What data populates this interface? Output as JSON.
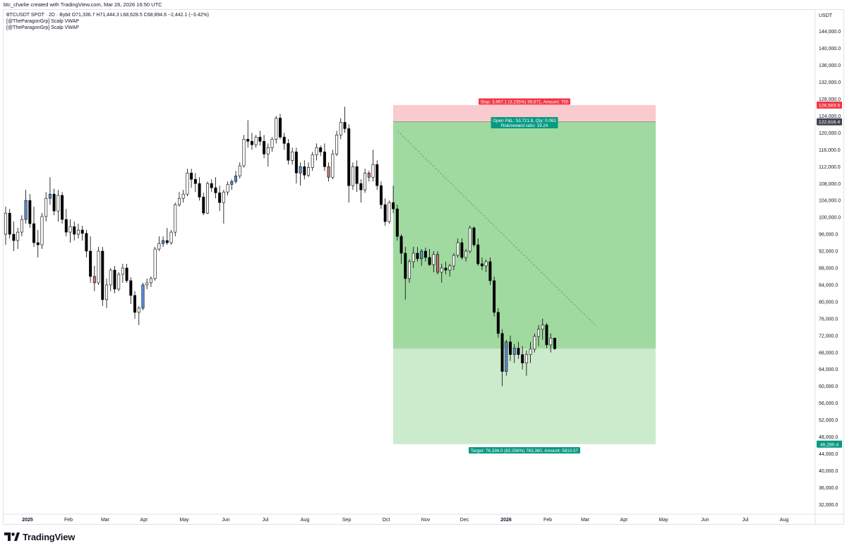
{
  "header": {
    "credit": "btc_charlie created with TradingView.com, Mar 26, 2026 16:50 UTC"
  },
  "legend": {
    "symbol_line": "BTCUSDT SPOT · 2D · Bybit  O71,336.7  H71,444.3  L68,628.5  C68,894.6  −2,442.1 (−3.42%)",
    "indicator_1": "[@TheParagonGrp] Scalp VWAP",
    "indicator_2": "[@TheParagonGrp] Scalp VWAP"
  },
  "footer": {
    "logo_text": "TradingView"
  },
  "chart_data": {
    "type": "candlestick",
    "unit": "USDT",
    "y_axis_labels": [
      "144,000.0",
      "140,000.0",
      "136,000.0",
      "132,000.0",
      "128,000.0",
      "124,000.0",
      "120,000.0",
      "116,000.0",
      "112,000.0",
      "108,000.0",
      "104,000.0",
      "100,000.0",
      "96,000.0",
      "92,000.0",
      "88,000.0",
      "84,000.0",
      "80,000.0",
      "76,000.0",
      "72,000.0",
      "68,000.0",
      "64,000.0",
      "60,000.0",
      "56,000.0",
      "52,000.0",
      "48,000.0",
      "44,000.0",
      "40,000.0",
      "36,000.0",
      "32,000.0"
    ],
    "y_axis_values": [
      144000,
      140000,
      136000,
      132000,
      128000,
      124000,
      120000,
      116000,
      112000,
      108000,
      104000,
      100000,
      96000,
      92000,
      88000,
      84000,
      80000,
      76000,
      72000,
      68000,
      64000,
      60000,
      56000,
      52000,
      48000,
      44000,
      40000,
      36000,
      32000
    ],
    "x_axis_labels": [
      "2025",
      "Feb",
      "Mar",
      "Apr",
      "May",
      "Jun",
      "Jul",
      "Aug",
      "Sep",
      "Oct",
      "Nov",
      "Dec",
      "2026",
      "Feb",
      "Mar",
      "Apr",
      "May",
      "Jun",
      "Jul",
      "Aug"
    ],
    "price_tags": [
      {
        "text": "126,583.5",
        "value": 126583.5,
        "color": "#f23645"
      },
      {
        "text": "122,616.4",
        "value": 122616.4,
        "color": "#434651"
      },
      {
        "text": "46,280.4",
        "value": 46280.4,
        "color": "#089981"
      }
    ],
    "position": {
      "side": "short",
      "entry": 122616.4,
      "stop": 126583.5,
      "target": 46280.4,
      "current_close": 68894.6,
      "stop_label": "Stop: 3,967.1 (3.235%) 39,671, Amount: 750",
      "open_pl_label": "Open P&L: 53,721.8, Qty: 0.063",
      "rr_label": "Risk/reward ratio: 19.24",
      "target_label": "Target: 76,336.0 (62.256%) 763,360, Amount: 5810.57"
    },
    "trendline": {
      "from_value": 120500,
      "to_value": 74200
    },
    "ohlc": [
      [
        96000,
        102500,
        93500,
        101000
      ],
      [
        101000,
        102000,
        95000,
        96000
      ],
      [
        96000,
        99000,
        92000,
        94500
      ],
      [
        94500,
        97500,
        92500,
        96500
      ],
      [
        96500,
        100500,
        95500,
        99500
      ],
      [
        99500,
        106500,
        98500,
        104000
      ],
      [
        104000,
        105500,
        97500,
        98500
      ],
      [
        98500,
        102500,
        93000,
        94000
      ],
      [
        94000,
        97000,
        90500,
        93500
      ],
      [
        93500,
        101000,
        92500,
        100200
      ],
      [
        100200,
        106000,
        99000,
        104500
      ],
      [
        104500,
        109500,
        103000,
        105500
      ],
      [
        105500,
        106800,
        100500,
        101500
      ],
      [
        101500,
        106500,
        99000,
        105200
      ],
      [
        105200,
        106000,
        98500,
        99500
      ],
      [
        99500,
        102000,
        95500,
        96500
      ],
      [
        96500,
        99500,
        94000,
        97800
      ],
      [
        97800,
        99000,
        94500,
        96000
      ],
      [
        96000,
        98500,
        95000,
        97000
      ],
      [
        97000,
        98000,
        94500,
        96200
      ],
      [
        96200,
        97000,
        90500,
        92000
      ],
      [
        92000,
        95500,
        84500,
        86000
      ],
      [
        86000,
        88500,
        82500,
        84500
      ],
      [
        84500,
        93000,
        84000,
        92000
      ],
      [
        92000,
        93000,
        79000,
        80500
      ],
      [
        80500,
        85500,
        78500,
        84000
      ],
      [
        84000,
        88000,
        82500,
        87500
      ],
      [
        87500,
        88500,
        82000,
        83000
      ],
      [
        83000,
        87000,
        82500,
        86500
      ],
      [
        86500,
        89000,
        84500,
        88000
      ],
      [
        88000,
        89000,
        84500,
        85000
      ],
      [
        85000,
        85800,
        79500,
        81500
      ],
      [
        81500,
        82500,
        76000,
        77500
      ],
      [
        77500,
        79000,
        74500,
        78500
      ],
      [
        78500,
        84500,
        78000,
        84000
      ],
      [
        84000,
        85500,
        83000,
        84500
      ],
      [
        84500,
        86000,
        83500,
        85500
      ],
      [
        85500,
        93000,
        85000,
        92500
      ],
      [
        92500,
        95500,
        92000,
        93800
      ],
      [
        93800,
        95500,
        93000,
        94500
      ],
      [
        94500,
        97500,
        93500,
        94000
      ],
      [
        94000,
        97000,
        93500,
        96500
      ],
      [
        96500,
        103500,
        95500,
        103000
      ],
      [
        103000,
        106000,
        102500,
        104500
      ],
      [
        104500,
        106500,
        103500,
        105500
      ],
      [
        105500,
        111500,
        105000,
        110500
      ],
      [
        110500,
        111500,
        107000,
        109000
      ],
      [
        109000,
        110500,
        106000,
        108000
      ],
      [
        108000,
        109500,
        104000,
        104800
      ],
      [
        104800,
        105800,
        100500,
        101000
      ],
      [
        101000,
        108500,
        100800,
        108000
      ],
      [
        108000,
        109000,
        106000,
        107000
      ],
      [
        107000,
        109500,
        104500,
        105800
      ],
      [
        105800,
        107500,
        101500,
        103500
      ],
      [
        103500,
        106500,
        98500,
        106000
      ],
      [
        106000,
        108500,
        105200,
        107800
      ],
      [
        107800,
        109000,
        106500,
        108500
      ],
      [
        108500,
        111000,
        108000,
        109800
      ],
      [
        109800,
        113000,
        109200,
        112200
      ],
      [
        112200,
        119500,
        111800,
        118500
      ],
      [
        118500,
        123000,
        116500,
        118000
      ],
      [
        118000,
        120000,
        116000,
        117200
      ],
      [
        117200,
        119500,
        116500,
        119000
      ],
      [
        119000,
        120500,
        117000,
        118000
      ],
      [
        118000,
        119500,
        114000,
        115000
      ],
      [
        115000,
        117500,
        112000,
        116500
      ],
      [
        116500,
        119000,
        115500,
        118500
      ],
      [
        118500,
        124000,
        117500,
        123500
      ],
      [
        123500,
        124500,
        118500,
        119000
      ],
      [
        119000,
        120000,
        116000,
        117500
      ],
      [
        117500,
        118500,
        112500,
        113500
      ],
      [
        113500,
        116500,
        112500,
        115500
      ],
      [
        115500,
        116500,
        108000,
        110500
      ],
      [
        110500,
        113000,
        107500,
        112000
      ],
      [
        112000,
        113500,
        109000,
        110000
      ],
      [
        110000,
        113000,
        109500,
        111800
      ],
      [
        111800,
        115500,
        111000,
        114800
      ],
      [
        114800,
        117500,
        113500,
        116500
      ],
      [
        116500,
        117000,
        114500,
        115500
      ],
      [
        115500,
        117500,
        111000,
        112000
      ],
      [
        112000,
        113000,
        108500,
        109500
      ],
      [
        109500,
        116000,
        109000,
        115000
      ],
      [
        115000,
        120500,
        114500,
        119500
      ],
      [
        119500,
        123500,
        118500,
        122500
      ],
      [
        122500,
        126200,
        120000,
        121000
      ],
      [
        121000,
        122000,
        103500,
        107500
      ],
      [
        107500,
        113000,
        106500,
        112000
      ],
      [
        112000,
        113500,
        106000,
        108000
      ],
      [
        108000,
        109000,
        103500,
        106500
      ],
      [
        106500,
        111500,
        105800,
        110500
      ],
      [
        110500,
        111000,
        108500,
        109500
      ],
      [
        109500,
        116000,
        108500,
        112500
      ],
      [
        112500,
        113500,
        106500,
        107500
      ],
      [
        107500,
        108500,
        102000,
        103000
      ],
      [
        103000,
        104500,
        98000,
        99000
      ],
      [
        99000,
        104000,
        98500,
        103500
      ],
      [
        103500,
        107500,
        101000,
        102000
      ],
      [
        102000,
        103000,
        94500,
        95500
      ],
      [
        95500,
        96000,
        89000,
        91500
      ],
      [
        91500,
        93000,
        80500,
        85500
      ],
      [
        85500,
        90000,
        84500,
        89500
      ],
      [
        89500,
        93000,
        88000,
        91500
      ],
      [
        91500,
        93000,
        89500,
        90200
      ],
      [
        90200,
        92500,
        88500,
        92000
      ],
      [
        92000,
        92800,
        89500,
        90500
      ],
      [
        90500,
        92500,
        88500,
        88800
      ],
      [
        88800,
        92000,
        87000,
        91200
      ],
      [
        91200,
        92000,
        86500,
        87000
      ],
      [
        87000,
        89000,
        84500,
        88000
      ],
      [
        88000,
        89500,
        86500,
        87500
      ],
      [
        87500,
        89000,
        86000,
        88500
      ],
      [
        88500,
        91500,
        87500,
        91000
      ],
      [
        91000,
        95000,
        90500,
        94000
      ],
      [
        94000,
        95000,
        90000,
        90500
      ],
      [
        90500,
        92500,
        89500,
        92000
      ],
      [
        92000,
        98000,
        91500,
        97500
      ],
      [
        97500,
        97800,
        93000,
        93500
      ],
      [
        93500,
        95000,
        88500,
        89000
      ],
      [
        89000,
        90500,
        87500,
        88500
      ],
      [
        88500,
        90000,
        87000,
        89500
      ],
      [
        89500,
        90500,
        84000,
        85000
      ],
      [
        85000,
        86000,
        76500,
        77500
      ],
      [
        77500,
        78500,
        71500,
        72500
      ],
      [
        72500,
        73500,
        60000,
        63500
      ],
      [
        63500,
        71000,
        62500,
        70500
      ],
      [
        70500,
        72000,
        66000,
        67500
      ],
      [
        67500,
        70000,
        65500,
        69000
      ],
      [
        69000,
        70500,
        66500,
        67500
      ],
      [
        67500,
        69500,
        64000,
        65500
      ],
      [
        65500,
        68500,
        62500,
        67500
      ],
      [
        67500,
        70500,
        65500,
        68800
      ],
      [
        68800,
        72500,
        68000,
        71800
      ],
      [
        71800,
        74500,
        69500,
        73500
      ],
      [
        73500,
        76000,
        71000,
        74500
      ],
      [
        74500,
        75000,
        69000,
        69800
      ],
      [
        69800,
        72500,
        68000,
        71400
      ],
      [
        71400,
        71500,
        68600,
        68900
      ]
    ]
  }
}
